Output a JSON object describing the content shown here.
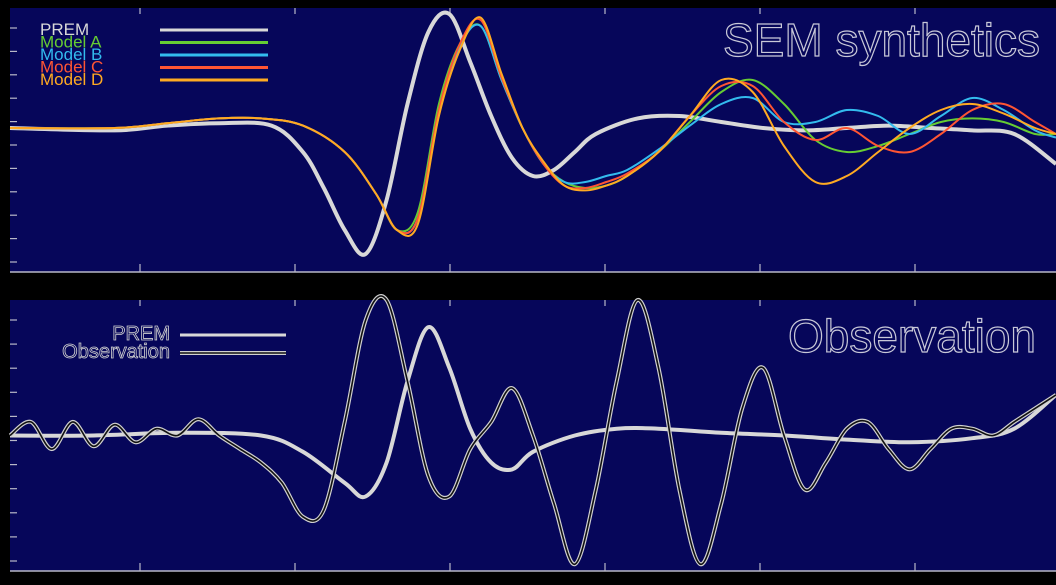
{
  "colors": {
    "background": "#000000",
    "plot_bg": "#06065a",
    "axis": "#b8b8c8",
    "prem": "#d8d8d8",
    "model_a": "#66cc33",
    "model_b": "#33bbee",
    "model_c": "#ff5533",
    "model_d": "#ffaa22",
    "observation": "#111111"
  },
  "chart_data": [
    {
      "type": "line",
      "title": "SEM synthetics",
      "xlim": [
        0,
        1000
      ],
      "ylim": [
        -1.2,
        1.0
      ],
      "legend_position": "top-left",
      "series": [
        {
          "name": "PREM",
          "color": "#d8d8d8",
          "x": [
            0,
            100,
            150,
            200,
            250,
            280,
            300,
            320,
            340,
            360,
            380,
            400,
            420,
            440,
            460,
            480,
            500,
            520,
            540,
            560,
            600,
            640,
            680,
            720,
            760,
            800,
            840,
            880,
            920,
            960,
            1000
          ],
          "y": [
            0,
            -0.02,
            0.02,
            0.04,
            0.02,
            -0.2,
            -0.5,
            -0.85,
            -1.05,
            -0.6,
            0.2,
            0.8,
            0.95,
            0.55,
            0.1,
            -0.25,
            -0.4,
            -0.35,
            -0.2,
            -0.05,
            0.08,
            0.1,
            0.05,
            0.0,
            -0.02,
            0.0,
            0.02,
            0.0,
            -0.02,
            -0.05,
            -0.3
          ]
        },
        {
          "name": "Model A",
          "color": "#66cc33",
          "x": [
            0,
            100,
            150,
            200,
            240,
            280,
            320,
            350,
            370,
            390,
            410,
            430,
            450,
            470,
            490,
            510,
            530,
            550,
            570,
            590,
            620,
            650,
            680,
            710,
            740,
            770,
            800,
            830,
            860,
            890,
            920,
            950,
            980,
            1000
          ],
          "y": [
            0,
            0,
            0.04,
            0.08,
            0.08,
            0.02,
            -0.2,
            -0.55,
            -0.85,
            -0.7,
            0.2,
            0.7,
            0.85,
            0.4,
            0.0,
            -0.3,
            -0.45,
            -0.5,
            -0.48,
            -0.4,
            -0.2,
            0.05,
            0.3,
            0.4,
            0.2,
            -0.1,
            -0.2,
            -0.15,
            -0.05,
            0.05,
            0.08,
            0.05,
            -0.05,
            -0.05
          ]
        },
        {
          "name": "Model B",
          "color": "#33bbee",
          "x": [
            0,
            100,
            150,
            200,
            240,
            280,
            320,
            350,
            370,
            390,
            410,
            430,
            450,
            470,
            490,
            510,
            530,
            550,
            570,
            590,
            620,
            650,
            680,
            710,
            740,
            770,
            800,
            830,
            860,
            890,
            920,
            950,
            980,
            1000
          ],
          "y": [
            0,
            0,
            0.04,
            0.08,
            0.08,
            0.02,
            -0.2,
            -0.55,
            -0.85,
            -0.75,
            0.15,
            0.68,
            0.85,
            0.4,
            0.0,
            -0.3,
            -0.45,
            -0.45,
            -0.4,
            -0.35,
            -0.18,
            0.02,
            0.2,
            0.25,
            0.05,
            0.05,
            0.15,
            0.1,
            -0.05,
            0.1,
            0.25,
            0.15,
            -0.02,
            -0.08
          ]
        },
        {
          "name": "Model C",
          "color": "#ff5533",
          "x": [
            0,
            100,
            150,
            200,
            240,
            280,
            320,
            350,
            370,
            390,
            410,
            430,
            450,
            470,
            490,
            510,
            530,
            550,
            570,
            590,
            620,
            650,
            680,
            710,
            740,
            770,
            800,
            830,
            860,
            890,
            920,
            950,
            980,
            1000
          ],
          "y": [
            0,
            0,
            0.04,
            0.08,
            0.08,
            0.02,
            -0.2,
            -0.55,
            -0.85,
            -0.75,
            0.15,
            0.7,
            0.9,
            0.42,
            0.0,
            -0.3,
            -0.48,
            -0.5,
            -0.45,
            -0.38,
            -0.2,
            0.1,
            0.35,
            0.35,
            0.05,
            -0.1,
            0.0,
            -0.15,
            -0.2,
            -0.05,
            0.15,
            0.2,
            0.05,
            -0.05
          ]
        },
        {
          "name": "Model D",
          "color": "#ffaa22",
          "x": [
            0,
            100,
            150,
            200,
            240,
            280,
            320,
            350,
            370,
            390,
            410,
            430,
            450,
            470,
            490,
            510,
            530,
            550,
            570,
            590,
            620,
            650,
            680,
            710,
            740,
            770,
            800,
            830,
            860,
            890,
            920,
            950,
            980,
            1000
          ],
          "y": [
            0,
            0,
            0.04,
            0.08,
            0.08,
            0.02,
            -0.2,
            -0.55,
            -0.85,
            -0.8,
            0.1,
            0.65,
            0.92,
            0.45,
            0.0,
            -0.28,
            -0.48,
            -0.52,
            -0.48,
            -0.4,
            -0.2,
            0.1,
            0.4,
            0.3,
            -0.15,
            -0.45,
            -0.4,
            -0.2,
            0.0,
            0.15,
            0.2,
            0.12,
            0.0,
            -0.05
          ]
        }
      ]
    },
    {
      "type": "line",
      "title": "Observation",
      "xlim": [
        0,
        1000
      ],
      "ylim": [
        -1.0,
        1.0
      ],
      "legend_position": "top-left",
      "series": [
        {
          "name": "PREM",
          "color": "#d8d8d8",
          "x": [
            0,
            80,
            160,
            240,
            280,
            320,
            340,
            360,
            380,
            400,
            420,
            440,
            460,
            480,
            500,
            540,
            580,
            620,
            680,
            740,
            800,
            860,
            920,
            960,
            1000
          ],
          "y": [
            0,
            0.0,
            0.02,
            0.0,
            -0.12,
            -0.35,
            -0.45,
            -0.2,
            0.4,
            0.8,
            0.5,
            0.05,
            -0.2,
            -0.25,
            -0.12,
            0.0,
            0.05,
            0.05,
            0.02,
            0.0,
            -0.03,
            -0.05,
            -0.02,
            0.05,
            0.3
          ]
        },
        {
          "name": "Observation",
          "color": "#111111",
          "x": [
            0,
            20,
            40,
            60,
            80,
            100,
            120,
            140,
            160,
            180,
            200,
            220,
            240,
            260,
            280,
            300,
            320,
            340,
            360,
            380,
            400,
            420,
            440,
            460,
            480,
            500,
            520,
            540,
            560,
            580,
            600,
            620,
            640,
            660,
            680,
            700,
            720,
            740,
            760,
            780,
            800,
            820,
            840,
            860,
            880,
            900,
            920,
            940,
            960,
            980,
            1000
          ],
          "y": [
            0,
            0.1,
            -0.1,
            0.1,
            -0.08,
            0.08,
            -0.05,
            0.05,
            0.0,
            0.12,
            0.0,
            -0.1,
            -0.2,
            -0.35,
            -0.6,
            -0.55,
            0.1,
            0.85,
            1.0,
            0.4,
            -0.3,
            -0.45,
            -0.1,
            0.1,
            0.35,
            0.0,
            -0.5,
            -0.95,
            -0.4,
            0.4,
            1.0,
            0.5,
            -0.4,
            -0.95,
            -0.5,
            0.2,
            0.5,
            0.0,
            -0.4,
            -0.2,
            0.05,
            0.1,
            -0.1,
            -0.25,
            -0.1,
            0.05,
            0.05,
            0.0,
            0.1,
            0.2,
            0.3
          ]
        }
      ]
    }
  ]
}
